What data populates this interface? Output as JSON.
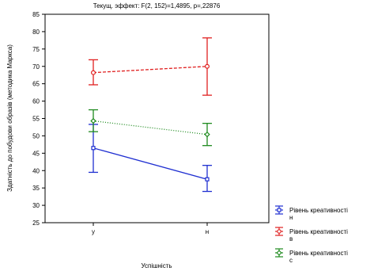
{
  "chart_data": {
    "type": "line",
    "title": "Текущ. эффект: F(2, 152)=1,4895, p=,22876",
    "xlabel": "Успішність",
    "ylabel": "Здатність до побудови образів (методика Маркса)",
    "categories": [
      "у",
      "н"
    ],
    "ylim": [
      25,
      85
    ],
    "yticks": [
      25,
      30,
      35,
      40,
      45,
      50,
      55,
      60,
      65,
      70,
      75,
      80,
      85
    ],
    "grid": false,
    "legend_position": "right",
    "series": [
      {
        "name": "Рівень креативності\nн",
        "color": "#1f2fd1",
        "line_style": "solid",
        "marker": "square",
        "values": [
          46.5,
          37.5
        ],
        "lower": [
          39.5,
          34.0
        ],
        "upper": [
          53.3,
          41.5
        ]
      },
      {
        "name": "Рівень креативності\nв",
        "color": "#e02020",
        "line_style": "dashed",
        "marker": "circle",
        "values": [
          68.2,
          70.0
        ],
        "lower": [
          64.7,
          61.7
        ],
        "upper": [
          71.9,
          78.2
        ]
      },
      {
        "name": "Рівень креативності\nс",
        "color": "#1e8a1e",
        "line_style": "dotted",
        "marker": "diamond",
        "values": [
          54.3,
          50.4
        ],
        "lower": [
          51.2,
          47.2
        ],
        "upper": [
          57.5,
          53.6
        ]
      }
    ]
  }
}
